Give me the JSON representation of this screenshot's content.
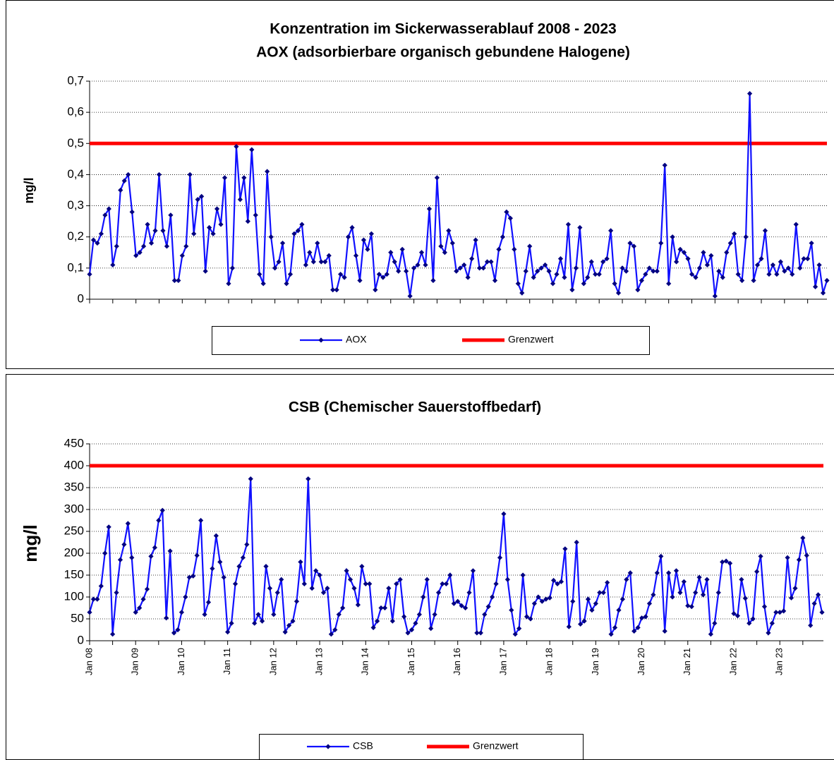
{
  "chart_data": [
    {
      "type": "line",
      "title": "Konzentration im Sickerwasserablauf  2008 - 2023",
      "subtitle": "AOX (adsorbierbare organisch gebundene Halogene)",
      "ylabel": "mg/l",
      "ylim": [
        0,
        0.7
      ],
      "yticks": [
        0,
        {
          "value": 0.1,
          "label": "0,1"
        },
        {
          "value": 0.2,
          "label": "0,2"
        },
        {
          "value": 0.3,
          "label": "0,3"
        },
        {
          "value": 0.4,
          "label": "0,4"
        },
        {
          "value": 0.5,
          "label": "0,5"
        },
        {
          "value": 0.6,
          "label": "0,6"
        },
        {
          "value": 0.7,
          "label": "0,7"
        }
      ],
      "grid": true,
      "series": [
        {
          "name": "AOX",
          "color": "#1010ff",
          "marker_color": "#000080",
          "values": [
            0.08,
            0.19,
            0.18,
            0.21,
            0.27,
            0.29,
            0.11,
            0.17,
            0.35,
            0.38,
            0.4,
            0.28,
            0.14,
            0.15,
            0.17,
            0.24,
            0.18,
            0.22,
            0.4,
            0.22,
            0.17,
            0.27,
            0.06,
            0.06,
            0.14,
            0.17,
            0.4,
            0.21,
            0.32,
            0.33,
            0.09,
            0.23,
            0.21,
            0.29,
            0.24,
            0.39,
            0.05,
            0.1,
            0.49,
            0.32,
            0.39,
            0.25,
            0.48,
            0.27,
            0.08,
            0.05,
            0.41,
            0.2,
            0.1,
            0.12,
            0.18,
            0.05,
            0.08,
            0.21,
            0.22,
            0.24,
            0.11,
            0.15,
            0.12,
            0.18,
            0.12,
            0.12,
            0.14,
            0.03,
            0.03,
            0.08,
            0.07,
            0.2,
            0.23,
            0.14,
            0.06,
            0.19,
            0.16,
            0.21,
            0.03,
            0.08,
            0.07,
            0.08,
            0.15,
            0.12,
            0.09,
            0.16,
            0.09,
            0.01,
            0.1,
            0.11,
            0.15,
            0.11,
            0.29,
            0.06,
            0.39,
            0.17,
            0.15,
            0.22,
            0.18,
            0.09,
            0.1,
            0.11,
            0.07,
            0.13,
            0.19,
            0.1,
            0.1,
            0.12,
            0.12,
            0.06,
            0.16,
            0.2,
            0.28,
            0.26,
            0.16,
            0.05,
            0.02,
            0.09,
            0.17,
            0.07,
            0.09,
            0.1,
            0.11,
            0.09,
            0.05,
            0.08,
            0.13,
            0.07,
            0.24,
            0.03,
            0.1,
            0.23,
            0.05,
            0.07,
            0.12,
            0.08,
            0.08,
            0.12,
            0.13,
            0.22,
            0.05,
            0.02,
            0.1,
            0.09,
            0.18,
            0.17,
            0.03,
            0.06,
            0.08,
            0.1,
            0.09,
            0.09,
            0.18,
            0.43,
            0.05,
            0.2,
            0.12,
            0.16,
            0.15,
            0.13,
            0.08,
            0.07,
            0.1,
            0.15,
            0.11,
            0.14,
            0.01,
            0.09,
            0.07,
            0.15,
            0.18,
            0.21,
            0.08,
            0.06,
            0.2,
            0.66,
            0.06,
            0.11,
            0.13,
            0.22,
            0.08,
            0.11,
            0.08,
            0.12,
            0.09,
            0.1,
            0.08,
            0.24,
            0.1,
            0.13,
            0.13,
            0.18,
            0.04,
            0.11,
            0.02,
            0.06
          ]
        }
      ],
      "threshold": {
        "name": "Grenzwert",
        "value": 0.5,
        "color": "#ff0000"
      }
    },
    {
      "type": "line",
      "title": "CSB (Chemischer Sauerstoffbedarf)",
      "ylabel": "mg/l",
      "ylim": [
        0,
        450
      ],
      "yticks": [
        0,
        50,
        100,
        150,
        200,
        250,
        300,
        350,
        400,
        450
      ],
      "grid": true,
      "categories": [
        "Jan 08",
        null,
        null,
        null,
        null,
        null,
        null,
        null,
        null,
        null,
        null,
        null,
        "Jan 09",
        null,
        null,
        null,
        null,
        null,
        null,
        null,
        null,
        null,
        null,
        null,
        "Jan 10",
        null,
        null,
        null,
        null,
        null,
        null,
        null,
        null,
        null,
        null,
        null,
        "Jan 11",
        null,
        null,
        null,
        null,
        null,
        null,
        null,
        null,
        null,
        null,
        null,
        "Jan 12",
        null,
        null,
        null,
        null,
        null,
        null,
        null,
        null,
        null,
        null,
        null,
        "Jan 13",
        null,
        null,
        null,
        null,
        null,
        null,
        null,
        null,
        null,
        null,
        null,
        "Jan 14",
        null,
        null,
        null,
        null,
        null,
        null,
        null,
        null,
        null,
        null,
        null,
        "Jan 15",
        null,
        null,
        null,
        null,
        null,
        null,
        null,
        null,
        null,
        null,
        null,
        "Jan 16",
        null,
        null,
        null,
        null,
        null,
        null,
        null,
        null,
        null,
        null,
        null,
        "Jan 17",
        null,
        null,
        null,
        null,
        null,
        null,
        null,
        null,
        null,
        null,
        null,
        "Jan 18",
        null,
        null,
        null,
        null,
        null,
        null,
        null,
        null,
        null,
        null,
        null,
        "Jan 19",
        null,
        null,
        null,
        null,
        null,
        null,
        null,
        null,
        null,
        null,
        null,
        "Jan 20",
        null,
        null,
        null,
        null,
        null,
        null,
        null,
        null,
        null,
        null,
        null,
        "Jan 21",
        null,
        null,
        null,
        null,
        null,
        null,
        null,
        null,
        null,
        null,
        null,
        "Jan 22",
        null,
        null,
        null,
        null,
        null,
        null,
        null,
        null,
        null,
        null,
        null,
        "Jan 23",
        null,
        null,
        null,
        null,
        null,
        null,
        null,
        null,
        null,
        null,
        null
      ],
      "series": [
        {
          "name": "CSB",
          "color": "#1010ff",
          "marker_color": "#000080",
          "values": [
            65,
            95,
            95,
            125,
            200,
            260,
            15,
            110,
            185,
            220,
            268,
            190,
            65,
            75,
            95,
            118,
            193,
            213,
            275,
            298,
            52,
            205,
            18,
            25,
            65,
            100,
            145,
            148,
            195,
            275,
            60,
            88,
            165,
            240,
            180,
            145,
            20,
            40,
            130,
            170,
            190,
            220,
            370,
            40,
            60,
            45,
            170,
            120,
            60,
            110,
            140,
            20,
            35,
            45,
            90,
            180,
            130,
            370,
            120,
            160,
            150,
            110,
            120,
            15,
            25,
            60,
            75,
            160,
            140,
            120,
            82,
            170,
            130,
            130,
            30,
            45,
            75,
            75,
            120,
            45,
            130,
            140,
            55,
            18,
            25,
            40,
            60,
            100,
            140,
            28,
            60,
            110,
            130,
            130,
            150,
            85,
            90,
            80,
            75,
            110,
            160,
            18,
            18,
            60,
            78,
            100,
            130,
            190,
            290,
            140,
            70,
            15,
            28,
            150,
            55,
            50,
            85,
            100,
            90,
            95,
            98,
            138,
            130,
            135,
            210,
            32,
            90,
            225,
            38,
            45,
            95,
            70,
            85,
            110,
            110,
            133,
            15,
            30,
            70,
            95,
            140,
            155,
            22,
            30,
            52,
            55,
            85,
            105,
            155,
            193,
            22,
            155,
            100,
            160,
            110,
            135,
            80,
            78,
            110,
            145,
            105,
            140,
            15,
            40,
            110,
            180,
            182,
            177,
            62,
            57,
            140,
            97,
            40,
            50,
            158,
            193,
            78,
            18,
            40,
            65,
            65,
            68,
            190,
            98,
            120,
            185,
            235,
            195,
            35,
            85,
            105,
            65
          ]
        }
      ],
      "threshold": {
        "name": "Grenzwert",
        "value": 400,
        "color": "#ff0000"
      }
    }
  ]
}
